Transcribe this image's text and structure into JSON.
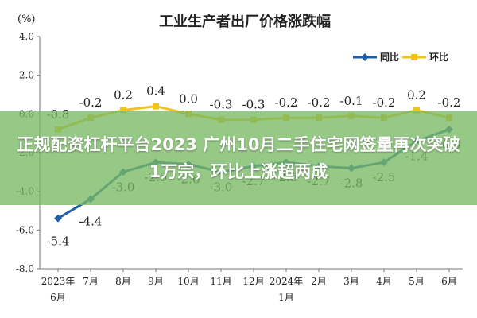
{
  "overlay": {
    "headline": "正规配资杠杆平台2023 广州10月二手住宅网签量再次突破1万宗，环比上涨超两成"
  },
  "chart_data": {
    "type": "line",
    "title": "工业生产者出厂价格涨跌幅",
    "ylabel": "(%)",
    "ylim": [
      -8.0,
      4.0
    ],
    "yticks": [
      "4.0",
      "2.0",
      "0.0",
      "-2.0",
      "-4.0",
      "-6.0",
      "-8.0"
    ],
    "categories": [
      "2023年6月",
      "7月",
      "8月",
      "9月",
      "10月",
      "11月",
      "12月",
      "2024年1月",
      "2月",
      "3月",
      "4月",
      "5月",
      "6月"
    ],
    "tick_labels": [
      [
        "2023年",
        "6月"
      ],
      [
        "7月"
      ],
      [
        "8月"
      ],
      [
        "9月"
      ],
      [
        "10月"
      ],
      [
        "11月"
      ],
      [
        "12月"
      ],
      [
        "2024年",
        "1月"
      ],
      [
        "2月"
      ],
      [
        "3月"
      ],
      [
        "4月"
      ],
      [
        "5月"
      ],
      [
        "6月"
      ]
    ],
    "legend_position": "top-right",
    "grid": false,
    "series": [
      {
        "name": "同比",
        "color": "#1f5fa8",
        "values": [
          -5.4,
          -4.4,
          -3.0,
          -2.5,
          -2.6,
          -3.0,
          -2.7,
          -2.5,
          -2.7,
          -2.8,
          -2.5,
          -1.4,
          -0.8
        ],
        "labels": [
          "-5.4",
          "-4.4",
          "-3.0",
          "-2.5",
          "-2.6",
          "-3.0",
          "-2.7",
          "-2.5",
          "-2.7",
          "-2.8",
          "-2.5",
          "-1.4",
          "-0.8"
        ]
      },
      {
        "name": "环比",
        "color": "#f0c419",
        "values": [
          -0.8,
          -0.2,
          0.2,
          0.4,
          0.0,
          -0.3,
          -0.3,
          -0.2,
          -0.2,
          -0.1,
          -0.2,
          0.2,
          -0.2
        ],
        "labels": [
          "-0.8",
          "-0.2",
          "0.2",
          "0.4",
          "0.0",
          "-0.3",
          "-0.3",
          "-0.2",
          "-0.2",
          "-0.1",
          "-0.2",
          "0.2",
          "-0.2"
        ]
      }
    ]
  }
}
